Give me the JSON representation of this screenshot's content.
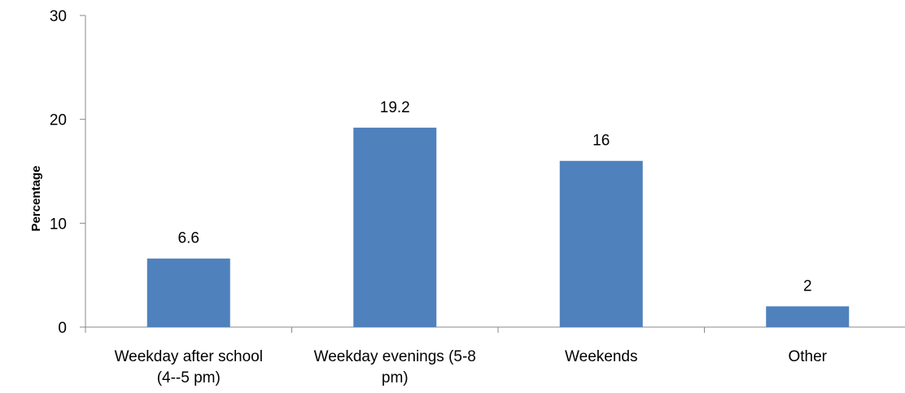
{
  "chart_data": {
    "type": "bar",
    "title": "",
    "xlabel": "",
    "ylabel": "Percentage",
    "ylim": [
      0,
      30
    ],
    "yticks": [
      0,
      10,
      20,
      30
    ],
    "grid": false,
    "legend": "none",
    "categories": [
      [
        "Weekday after school",
        "(4--5 pm)"
      ],
      [
        "Weekday evenings (5-8",
        "pm)"
      ],
      [
        "Weekends"
      ],
      [
        "Other"
      ]
    ],
    "values": [
      6.6,
      19.2,
      16,
      2
    ],
    "data_labels": [
      "6.6",
      "19.2",
      "16",
      "2"
    ],
    "colors": {
      "bar": "#4F81BD",
      "axis": "#888888"
    }
  }
}
